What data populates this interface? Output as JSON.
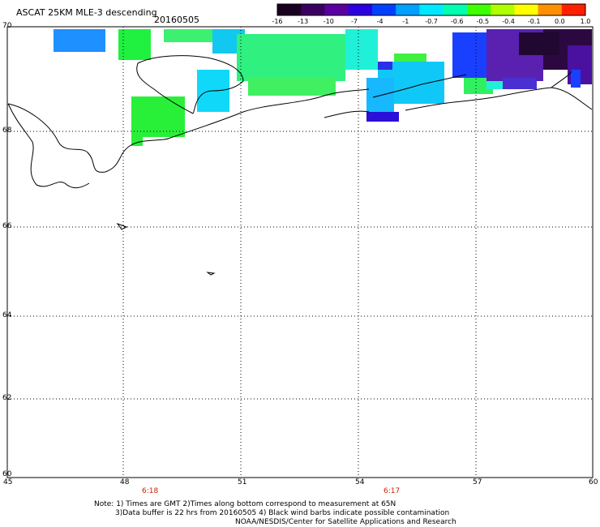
{
  "header": {
    "title": "ASCAT 25KM MLE-3 descending",
    "date": "20160505"
  },
  "colorbar": {
    "labels": [
      "-16",
      "-13",
      "-10",
      "-7",
      "-4",
      "-1",
      "-0.7",
      "-0.6",
      "-0.5",
      "-0.4",
      "-0.1",
      "0.0",
      "1.0"
    ],
    "colors": [
      "#1a0020",
      "#3b0060",
      "#5a00a0",
      "#2a00e0",
      "#0040ff",
      "#00a0ff",
      "#00e8ff",
      "#00ffb0",
      "#40ff00",
      "#b0ff00",
      "#ffff00",
      "#ff9000",
      "#ff2000"
    ]
  },
  "axes": {
    "lat_labels": [
      "70",
      "68",
      "66",
      "64",
      "62",
      "60"
    ],
    "lon_labels": [
      "45",
      "48",
      "51",
      "54",
      "57",
      "60"
    ]
  },
  "overpass_times": [
    "6:18",
    "6:17"
  ],
  "notes": {
    "line1": "Note: 1) Times are GMT 2)Times along bottom correspond to measurement at 65N",
    "line2": "3)Data buffer is 22 hrs from 20160505 4) Black wind barbs indicate possible contamination",
    "line3": "NOAA/NESDIS/Center for Satellite Applications and Research"
  }
}
